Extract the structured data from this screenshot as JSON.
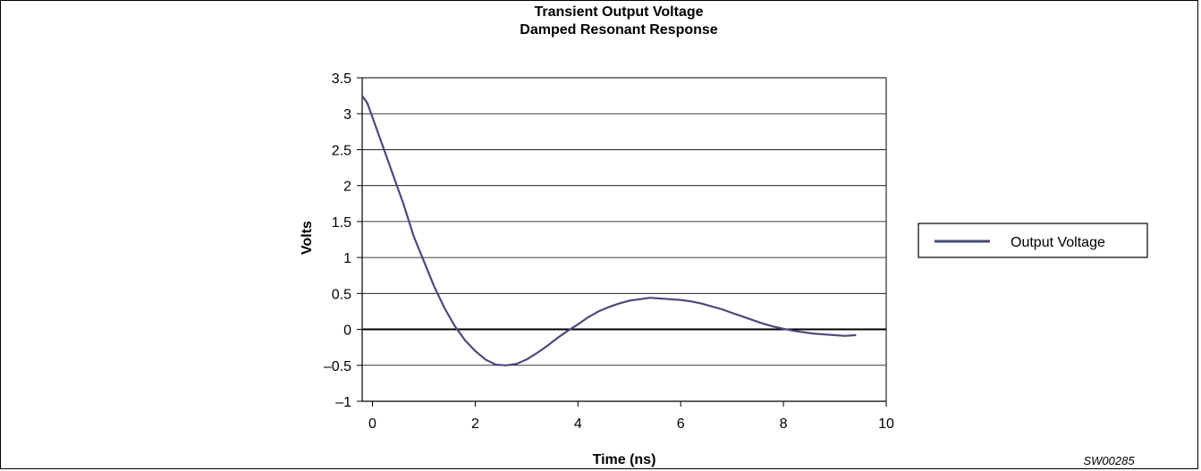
{
  "chart_data": {
    "type": "line",
    "title": "Transient Output Voltage",
    "subtitle": "Damped Resonant Response",
    "xlabel": "Time (ns)",
    "ylabel": "Volts",
    "xlim": [
      -0.2,
      10
    ],
    "ylim": [
      -1,
      3.5
    ],
    "xticks": [
      0,
      2,
      4,
      6,
      8,
      10
    ],
    "xtick_labels": [
      "0",
      "2",
      "4",
      "6",
      "8",
      "10"
    ],
    "yticks": [
      3.5,
      3,
      2.5,
      2,
      1.5,
      1,
      0.5,
      0,
      -0.5,
      -1
    ],
    "ytick_labels": [
      "3.5",
      "3",
      "2.5",
      "2",
      "1.5",
      "1",
      "0.5",
      "0",
      "–0.5",
      "–1"
    ],
    "grid": true,
    "legend_position": "right",
    "series": [
      {
        "name": "Output Voltage",
        "color": "#4a4a7d",
        "x": [
          -0.2,
          -0.1,
          0.0,
          0.2,
          0.4,
          0.6,
          0.8,
          1.0,
          1.2,
          1.4,
          1.6,
          1.8,
          2.0,
          2.2,
          2.4,
          2.6,
          2.8,
          3.0,
          3.2,
          3.4,
          3.6,
          3.8,
          4.0,
          4.2,
          4.4,
          4.6,
          4.8,
          5.0,
          5.2,
          5.4,
          5.6,
          5.8,
          6.0,
          6.2,
          6.4,
          6.6,
          6.8,
          7.0,
          7.2,
          7.4,
          7.6,
          7.8,
          8.0,
          8.2,
          8.4,
          8.6,
          8.8,
          9.0,
          9.2,
          9.4
        ],
        "values": [
          3.25,
          3.15,
          2.95,
          2.55,
          2.15,
          1.75,
          1.3,
          0.95,
          0.6,
          0.3,
          0.05,
          -0.15,
          -0.3,
          -0.42,
          -0.49,
          -0.5,
          -0.48,
          -0.42,
          -0.33,
          -0.23,
          -0.12,
          -0.02,
          0.07,
          0.17,
          0.25,
          0.31,
          0.36,
          0.4,
          0.42,
          0.44,
          0.43,
          0.42,
          0.41,
          0.39,
          0.36,
          0.32,
          0.28,
          0.23,
          0.18,
          0.13,
          0.08,
          0.04,
          0.01,
          -0.02,
          -0.04,
          -0.06,
          -0.07,
          -0.08,
          -0.09,
          -0.08
        ]
      }
    ]
  },
  "figure_id": "SW00285",
  "colors": {
    "line": "#4a4a7d",
    "axis": "#000000",
    "grid": "#000000"
  }
}
